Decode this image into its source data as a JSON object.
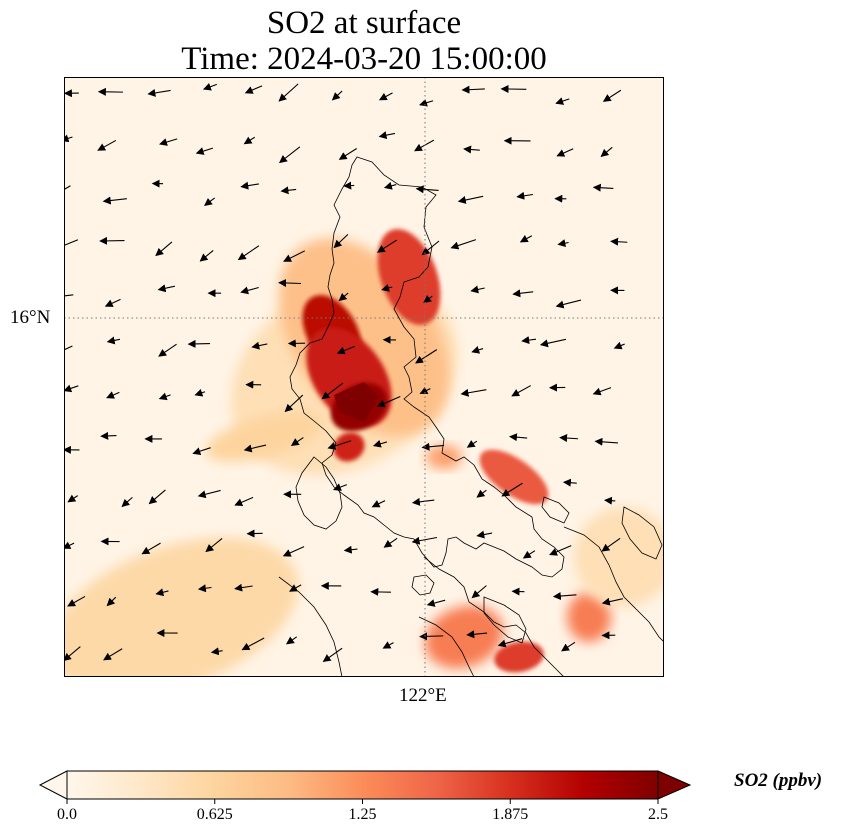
{
  "title": {
    "line1": "SO2 at surface",
    "line2": "Time: 2024-03-20 15:00:00"
  },
  "axes": {
    "lat_tick": "16°N",
    "lon_tick": "122°E",
    "lat_value": 16,
    "lon_value": 122,
    "gridlines": "dotted"
  },
  "colorbar": {
    "label": "SO2 (ppbv)",
    "ticks": [
      "0.0",
      "0.625",
      "1.25",
      "1.875",
      "2.5"
    ],
    "min": 0.0,
    "max": 2.5,
    "colormap": "OrRd",
    "colors": [
      "#fff7ec",
      "#fee8c8",
      "#fdd49e",
      "#fdbb84",
      "#fc8d59",
      "#ef6548",
      "#d7301f",
      "#b30000",
      "#7f0000"
    ],
    "extend": "both"
  },
  "field": {
    "variable": "SO2",
    "wind_vectors": true,
    "coastlines": true
  }
}
